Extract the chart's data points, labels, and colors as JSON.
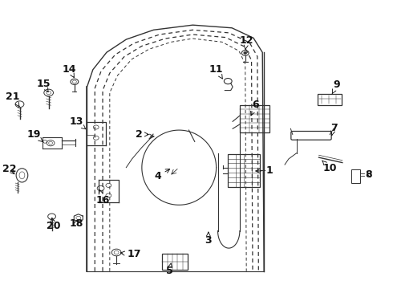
{
  "background_color": "#ffffff",
  "fig_width": 4.9,
  "fig_height": 3.6,
  "dpi": 100,
  "line_color": "#333333",
  "label_fontsize": 7.5,
  "label_fontsize_large": 9.0,
  "parts_labels": {
    "1": [
      0.638,
      0.408,
      0.68,
      0.408
    ],
    "2": [
      0.388,
      0.53,
      0.365,
      0.53
    ],
    "3": [
      0.53,
      0.195,
      0.53,
      0.17
    ],
    "4": [
      0.43,
      0.39,
      0.405,
      0.385
    ],
    "5": [
      0.435,
      0.085,
      0.435,
      0.062
    ],
    "6": [
      0.64,
      0.6,
      0.65,
      0.63
    ],
    "7": [
      0.82,
      0.53,
      0.845,
      0.558
    ],
    "8": [
      0.92,
      0.41,
      0.935,
      0.392
    ],
    "9": [
      0.84,
      0.68,
      0.855,
      0.7
    ],
    "10": [
      0.82,
      0.44,
      0.84,
      0.418
    ],
    "11": [
      0.57,
      0.73,
      0.558,
      0.758
    ],
    "12": [
      0.62,
      0.83,
      0.628,
      0.858
    ],
    "13": [
      0.21,
      0.56,
      0.198,
      0.585
    ],
    "14": [
      0.188,
      0.73,
      0.188,
      0.758
    ],
    "15": [
      0.122,
      0.68,
      0.118,
      0.71
    ],
    "16": [
      0.248,
      0.335,
      0.258,
      0.31
    ],
    "17": [
      0.298,
      0.118,
      0.33,
      0.118
    ],
    "18": [
      0.198,
      0.255,
      0.2,
      0.228
    ],
    "19": [
      0.108,
      0.51,
      0.092,
      0.535
    ],
    "20": [
      0.128,
      0.248,
      0.138,
      0.222
    ],
    "21": [
      0.045,
      0.64,
      0.038,
      0.665
    ],
    "22": [
      0.038,
      0.39,
      0.025,
      0.415
    ]
  }
}
